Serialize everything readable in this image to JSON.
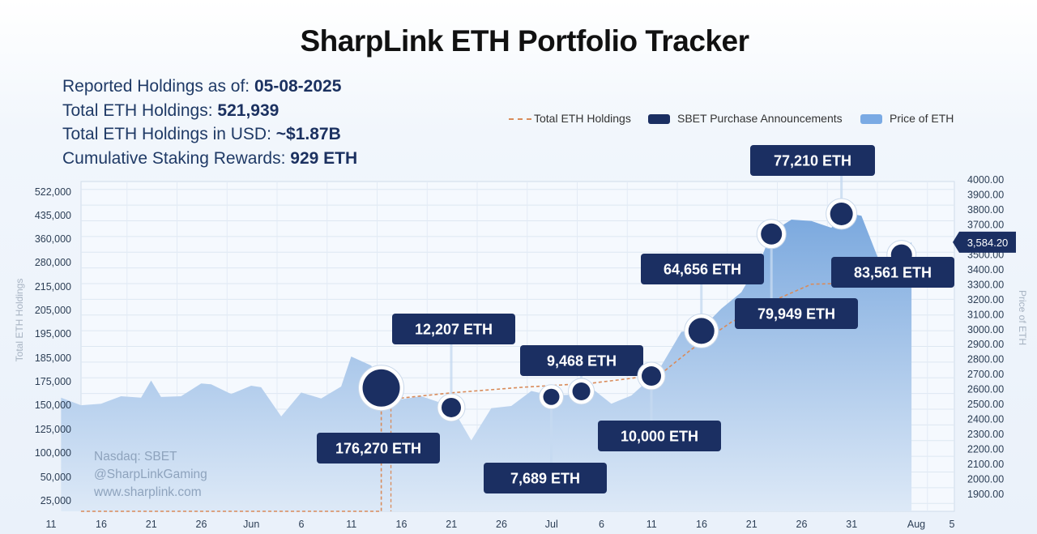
{
  "title": "SharpLink ETH Portfolio Tracker",
  "stats": {
    "reported_label": "Reported Holdings as of: ",
    "reported_value": "05-08-2025",
    "total_label": "Total ETH Holdings: ",
    "total_value": "521,939",
    "usd_label": "Total ETH Holdings in USD: ",
    "usd_value": "~$1.87B",
    "staking_label": "Cumulative Staking Rewards: ",
    "staking_value": "929 ETH"
  },
  "legend": {
    "holdings": "Total ETH Holdings",
    "announcements": "SBET Purchase Announcements",
    "price": "Price of ETH"
  },
  "watermark": {
    "line1": "Nasdaq: SBET",
    "line2": "@SharpLinkGaming",
    "line3": "www.sharplink.com"
  },
  "colors": {
    "navy": "#1b2f62",
    "price_fill_top": "#7aa8de",
    "price_fill_bottom": "#d9e7f7",
    "holdings_line": "#d98b5a",
    "legend_price": "#7aaae4"
  },
  "chart_data": {
    "type": "area",
    "ylabel": "Total ETH Holdings",
    "y2label": "Price of ETH",
    "x_tick_labels": [
      "11",
      "16",
      "21",
      "26",
      "Jun",
      "6",
      "11",
      "16",
      "21",
      "26",
      "Jul",
      "6",
      "11",
      "16",
      "21",
      "26",
      "31",
      "Aug",
      "5"
    ],
    "left_axis_ticks": [
      "25,000",
      "50,000",
      "100,000",
      "125,000",
      "150,000",
      "175,000",
      "185,000",
      "195,000",
      "205,000",
      "215,000",
      "280,000",
      "360,000",
      "435,000",
      "522,000"
    ],
    "right_axis_ticks": [
      "1900.00",
      "2000.00",
      "2100.00",
      "2200.00",
      "2300.00",
      "2400.00",
      "2500.00",
      "2600.00",
      "2700.00",
      "2800.00",
      "2900.00",
      "3000.00",
      "3100.00",
      "3200.00",
      "3300.00",
      "3400.00",
      "3500.00",
      "3600.00",
      "3700.00",
      "3800.00",
      "3900.00",
      "4000.00"
    ],
    "right_range": [
      1800,
      4000
    ],
    "current_price_label": "3,584.20",
    "current_price": 3584.2,
    "price_series": {
      "name": "Price of ETH",
      "dates": [
        "2025-05-12",
        "2025-05-14",
        "2025-05-16",
        "2025-05-18",
        "2025-05-20",
        "2025-05-21",
        "2025-05-22",
        "2025-05-24",
        "2025-05-26",
        "2025-05-27",
        "2025-05-29",
        "2025-05-31",
        "2025-06-01",
        "2025-06-03",
        "2025-06-05",
        "2025-06-07",
        "2025-06-09",
        "2025-06-10",
        "2025-06-12",
        "2025-06-13",
        "2025-06-15",
        "2025-06-17",
        "2025-06-19",
        "2025-06-20",
        "2025-06-22",
        "2025-06-24",
        "2025-06-26",
        "2025-06-28",
        "2025-06-30",
        "2025-07-02",
        "2025-07-04",
        "2025-07-06",
        "2025-07-08",
        "2025-07-09",
        "2025-07-11",
        "2025-07-13",
        "2025-07-15",
        "2025-07-17",
        "2025-07-19",
        "2025-07-21",
        "2025-07-22",
        "2025-07-24",
        "2025-07-26",
        "2025-07-28",
        "2025-07-29",
        "2025-07-31",
        "2025-08-02",
        "2025-08-03",
        "2025-08-04",
        "2025-08-05"
      ],
      "values": [
        2545,
        2495,
        2505,
        2555,
        2545,
        2660,
        2550,
        2555,
        2640,
        2635,
        2570,
        2625,
        2615,
        2420,
        2580,
        2540,
        2620,
        2820,
        2760,
        2630,
        2535,
        2555,
        2510,
        2490,
        2260,
        2475,
        2490,
        2590,
        2560,
        2565,
        2610,
        2505,
        2560,
        2620,
        2760,
        2985,
        3005,
        3140,
        3250,
        3480,
        3650,
        3735,
        3725,
        3680,
        3785,
        3760,
        3420,
        3460,
        3510,
        3584
      ]
    },
    "holdings_series": {
      "name": "Total ETH Holdings",
      "dates": [
        "2025-05-14",
        "2025-06-13",
        "2025-06-20",
        "2025-06-27",
        "2025-07-04",
        "2025-07-08",
        "2025-07-11",
        "2025-07-14",
        "2025-07-18",
        "2025-07-22",
        "2025-07-26",
        "2025-08-05"
      ],
      "values": [
        0,
        176270,
        188478,
        198167,
        205857,
        215325,
        225325,
        280706,
        360655,
        435865,
        511075,
        521939
      ]
    },
    "announcements": [
      {
        "label": "176,270 ETH",
        "date": "2025-06-13"
      },
      {
        "label": "12,207 ETH",
        "date": "2025-06-20"
      },
      {
        "label": "7,689 ETH",
        "date": "2025-06-30"
      },
      {
        "label": "9,468 ETH",
        "date": "2025-07-03"
      },
      {
        "label": "10,000 ETH",
        "date": "2025-07-10"
      },
      {
        "label": "64,656 ETH",
        "date": "2025-07-15"
      },
      {
        "label": "79,949 ETH",
        "date": "2025-07-22"
      },
      {
        "label": "77,210 ETH",
        "date": "2025-07-29"
      },
      {
        "label": "83,561 ETH",
        "date": "2025-08-04"
      }
    ]
  }
}
